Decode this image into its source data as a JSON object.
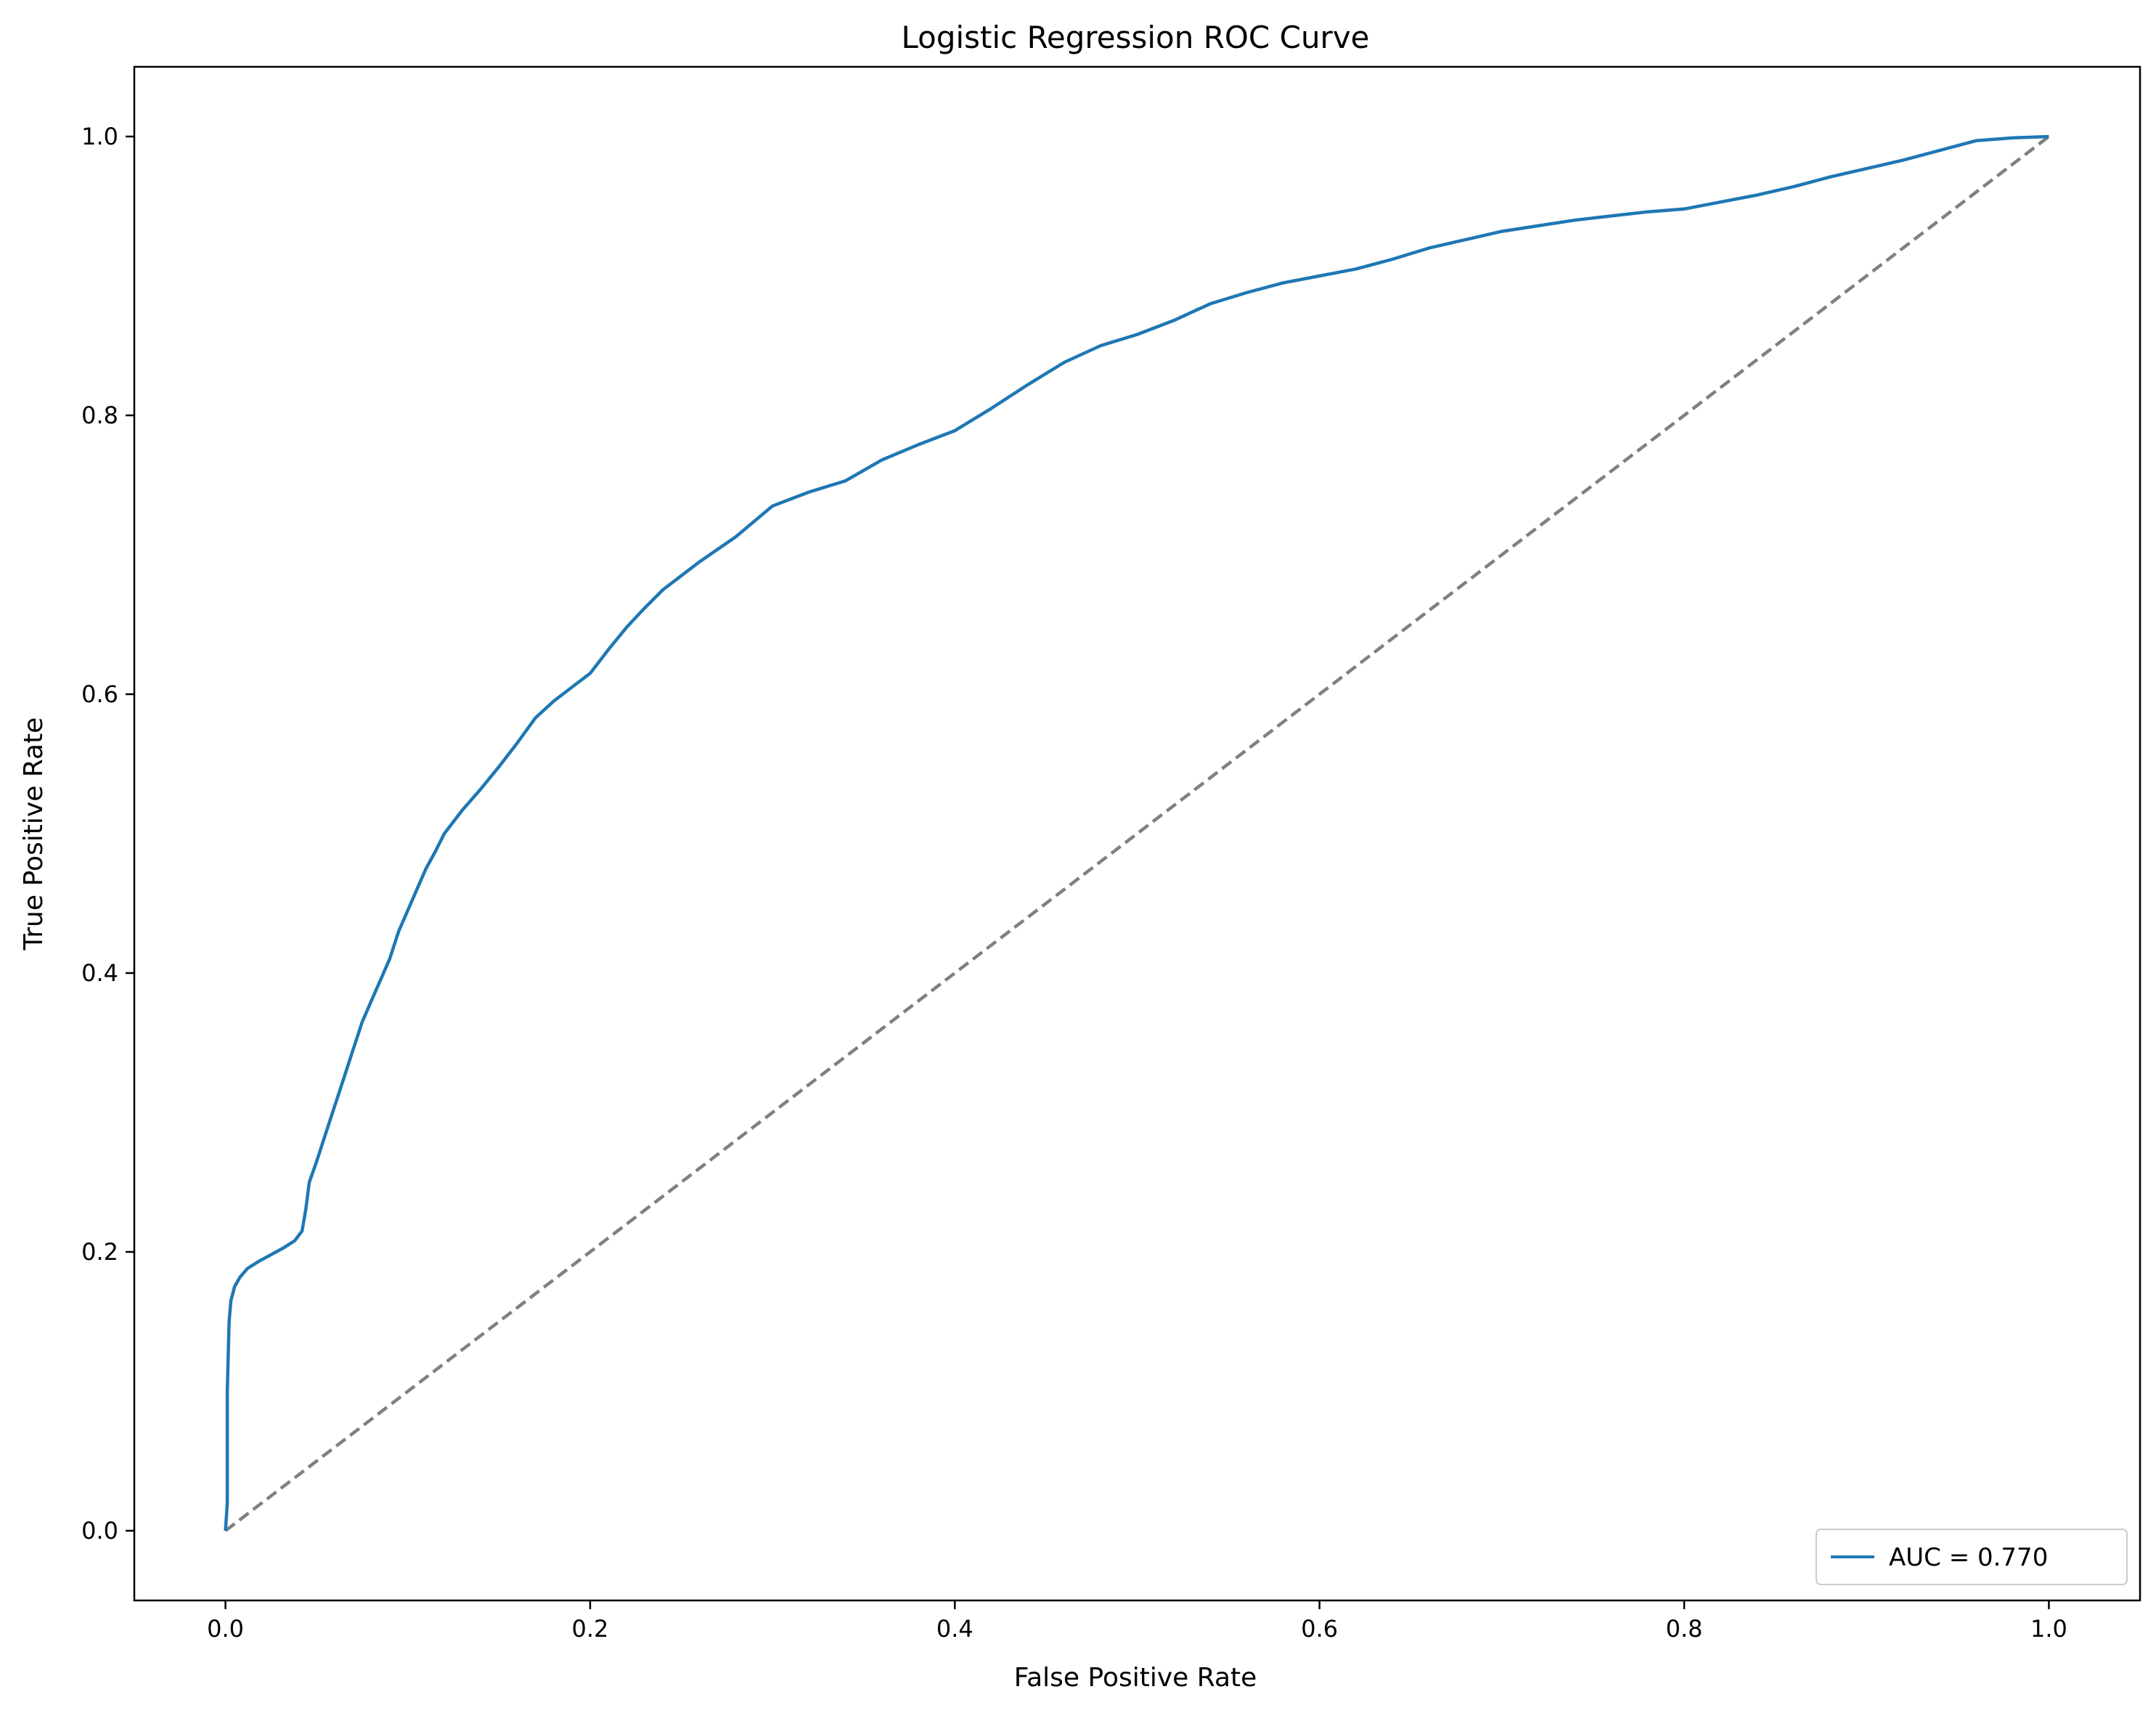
{
  "chart_data": {
    "type": "line",
    "title": "Logistic Regression ROC Curve",
    "xlabel": "False Positive Rate",
    "ylabel": "True Positive Rate",
    "xlim": [
      -0.05,
      1.05
    ],
    "ylim": [
      -0.05,
      1.05
    ],
    "xticks": [
      0.0,
      0.2,
      0.4,
      0.6,
      0.8,
      1.0
    ],
    "yticks": [
      0.0,
      0.2,
      0.4,
      0.6,
      0.8,
      1.0
    ],
    "xtick_labels": [
      "0.0",
      "0.2",
      "0.4",
      "0.6",
      "0.8",
      "1.0"
    ],
    "ytick_labels": [
      "0.0",
      "0.2",
      "0.4",
      "0.6",
      "0.8",
      "1.0"
    ],
    "grid": false,
    "legend_position": "bottom-right",
    "series": [
      {
        "name": "AUC = 0.770",
        "color": "#1f77b4",
        "style": "solid",
        "x": [
          0.0,
          0.001,
          0.001,
          0.002,
          0.003,
          0.005,
          0.008,
          0.012,
          0.018,
          0.025,
          0.032,
          0.038,
          0.042,
          0.044,
          0.046,
          0.05,
          0.055,
          0.06,
          0.065,
          0.07,
          0.075,
          0.08,
          0.085,
          0.09,
          0.095,
          0.1,
          0.105,
          0.11,
          0.115,
          0.12,
          0.13,
          0.14,
          0.15,
          0.16,
          0.17,
          0.18,
          0.19,
          0.2,
          0.21,
          0.22,
          0.23,
          0.24,
          0.25,
          0.26,
          0.28,
          0.3,
          0.32,
          0.34,
          0.36,
          0.38,
          0.4,
          0.42,
          0.44,
          0.46,
          0.48,
          0.5,
          0.52,
          0.54,
          0.56,
          0.58,
          0.6,
          0.62,
          0.64,
          0.66,
          0.68,
          0.7,
          0.72,
          0.74,
          0.76,
          0.78,
          0.8,
          0.82,
          0.84,
          0.86,
          0.88,
          0.9,
          0.92,
          0.94,
          0.96,
          0.98,
          1.0
        ],
        "y": [
          0.0,
          0.02,
          0.1,
          0.15,
          0.165,
          0.175,
          0.182,
          0.188,
          0.193,
          0.198,
          0.203,
          0.208,
          0.215,
          0.23,
          0.25,
          0.265,
          0.285,
          0.305,
          0.325,
          0.345,
          0.365,
          0.38,
          0.395,
          0.41,
          0.43,
          0.445,
          0.46,
          0.475,
          0.487,
          0.5,
          0.517,
          0.532,
          0.548,
          0.565,
          0.583,
          0.595,
          0.605,
          0.615,
          0.632,
          0.648,
          0.662,
          0.675,
          0.685,
          0.695,
          0.713,
          0.735,
          0.745,
          0.753,
          0.768,
          0.779,
          0.789,
          0.805,
          0.822,
          0.838,
          0.85,
          0.858,
          0.868,
          0.88,
          0.888,
          0.895,
          0.9,
          0.905,
          0.912,
          0.92,
          0.926,
          0.932,
          0.936,
          0.94,
          0.943,
          0.946,
          0.948,
          0.953,
          0.958,
          0.964,
          0.971,
          0.977,
          0.983,
          0.99,
          0.997,
          0.999,
          1.0
        ]
      },
      {
        "name": "",
        "color": "#808080",
        "style": "dashed",
        "x": [
          0.0,
          1.0
        ],
        "y": [
          0.0,
          1.0
        ]
      }
    ]
  }
}
